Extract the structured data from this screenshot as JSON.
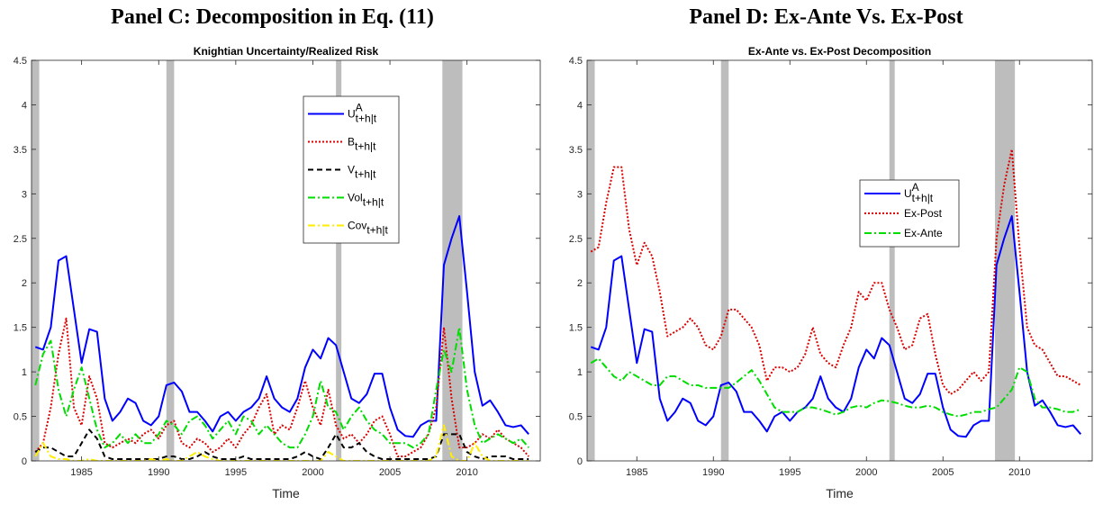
{
  "chart_data": [
    {
      "type": "line",
      "panel_title": "Panel C: Decomposition in Eq. (11)",
      "title": "Knightian Uncertainty/Realized Risk",
      "xlabel": "Time",
      "xlim": [
        1981.75,
        2014.75
      ],
      "xticks": [
        1985,
        1990,
        1995,
        2000,
        2005,
        2010
      ],
      "ylim": [
        0,
        4.5
      ],
      "yticks": [
        0,
        0.5,
        1,
        1.5,
        2,
        2.5,
        3,
        3.5,
        4,
        4.5
      ],
      "legend": "northeast",
      "shading": [
        [
          1981.75,
          1982.25
        ],
        [
          1990.5,
          1991.0
        ],
        [
          2001.5,
          2001.85
        ],
        [
          2008.4,
          2009.7
        ]
      ],
      "shading_color": "#bdbdbd",
      "x": [
        1982,
        1982.5,
        1983,
        1983.5,
        1984,
        1984.5,
        1985,
        1985.5,
        1986,
        1986.5,
        1987,
        1987.5,
        1988,
        1988.5,
        1989,
        1989.5,
        1990,
        1990.5,
        1991,
        1991.5,
        1992,
        1992.5,
        1993,
        1993.5,
        1994,
        1994.5,
        1995,
        1995.5,
        1996,
        1996.5,
        1997,
        1997.5,
        1998,
        1998.5,
        1999,
        1999.5,
        2000,
        2000.5,
        2001,
        2001.5,
        2002,
        2002.5,
        2003,
        2003.5,
        2004,
        2004.5,
        2005,
        2005.5,
        2006,
        2006.5,
        2007,
        2007.5,
        2008,
        2008.5,
        2009,
        2009.5,
        2010,
        2010.5,
        2011,
        2011.5,
        2012,
        2012.5,
        2013,
        2013.5,
        2014
      ],
      "series": [
        {
          "name": "U",
          "name_sup": "A",
          "name_sub": "t+h|t",
          "color": "#0000ff",
          "style": "solid",
          "values": [
            1.28,
            1.25,
            1.5,
            2.25,
            2.3,
            1.7,
            1.1,
            1.48,
            1.45,
            0.7,
            0.45,
            0.55,
            0.7,
            0.65,
            0.45,
            0.4,
            0.5,
            0.85,
            0.88,
            0.78,
            0.55,
            0.55,
            0.45,
            0.33,
            0.5,
            0.55,
            0.45,
            0.55,
            0.6,
            0.7,
            0.95,
            0.7,
            0.6,
            0.55,
            0.7,
            1.05,
            1.25,
            1.15,
            1.38,
            1.3,
            1.0,
            0.7,
            0.65,
            0.75,
            0.98,
            0.98,
            0.6,
            0.35,
            0.28,
            0.27,
            0.4,
            0.45,
            0.45,
            2.2,
            2.5,
            2.75,
            1.9,
            1.0,
            0.62,
            0.68,
            0.55,
            0.4,
            0.38,
            0.4,
            0.3
          ]
        },
        {
          "name": "B",
          "name_sub": "t+h|t",
          "color": "#dd0000",
          "style": "dotted",
          "values": [
            0.1,
            0.2,
            0.6,
            1.2,
            1.6,
            0.6,
            0.4,
            0.95,
            0.7,
            0.2,
            0.15,
            0.2,
            0.25,
            0.2,
            0.3,
            0.35,
            0.25,
            0.4,
            0.45,
            0.2,
            0.15,
            0.25,
            0.2,
            0.1,
            0.15,
            0.25,
            0.15,
            0.3,
            0.4,
            0.6,
            0.75,
            0.3,
            0.4,
            0.35,
            0.6,
            0.9,
            0.6,
            0.4,
            0.8,
            0.4,
            0.25,
            0.3,
            0.2,
            0.3,
            0.45,
            0.5,
            0.3,
            0.05,
            0.05,
            0.1,
            0.15,
            0.3,
            0.6,
            1.5,
            0.7,
            0.15,
            0.15,
            0.2,
            0.3,
            0.25,
            0.35,
            0.25,
            0.2,
            0.15,
            0.05
          ]
        },
        {
          "name": "V",
          "name_sub": "t+h|t",
          "color": "#000000",
          "style": "dashed",
          "values": [
            0.1,
            0.15,
            0.15,
            0.1,
            0.05,
            0.05,
            0.2,
            0.35,
            0.25,
            0.05,
            0.02,
            0.02,
            0.02,
            0.02,
            0.02,
            0.02,
            0.02,
            0.05,
            0.05,
            0.02,
            0.02,
            0.05,
            0.1,
            0.05,
            0.02,
            0.02,
            0.02,
            0.05,
            0.02,
            0.02,
            0.02,
            0.02,
            0.02,
            0.02,
            0.05,
            0.1,
            0.05,
            0.02,
            0.15,
            0.3,
            0.15,
            0.15,
            0.2,
            0.1,
            0.05,
            0.02,
            0.02,
            0.02,
            0.02,
            0.02,
            0.02,
            0.02,
            0.05,
            0.3,
            0.3,
            0.3,
            0.1,
            0.05,
            0.02,
            0.05,
            0.05,
            0.05,
            0.02,
            0.02,
            0.02
          ]
        },
        {
          "name": "Vol",
          "name_sub": "t+h|t",
          "color": "#00dd00",
          "style": "dashdot",
          "values": [
            0.85,
            1.2,
            1.35,
            0.8,
            0.5,
            0.8,
            1.05,
            0.7,
            0.35,
            0.15,
            0.2,
            0.3,
            0.2,
            0.3,
            0.2,
            0.2,
            0.3,
            0.45,
            0.4,
            0.3,
            0.45,
            0.5,
            0.4,
            0.25,
            0.35,
            0.45,
            0.3,
            0.5,
            0.45,
            0.3,
            0.4,
            0.3,
            0.2,
            0.15,
            0.15,
            0.3,
            0.5,
            0.9,
            0.6,
            0.55,
            0.35,
            0.5,
            0.6,
            0.45,
            0.35,
            0.3,
            0.2,
            0.2,
            0.2,
            0.15,
            0.2,
            0.3,
            0.8,
            1.25,
            1.0,
            1.5,
            0.8,
            0.4,
            0.2,
            0.25,
            0.3,
            0.25,
            0.2,
            0.25,
            0.15
          ]
        },
        {
          "name": "Cov",
          "name_sub": "t+h|t",
          "color": "#ffee00",
          "style": "dashdot",
          "values": [
            0.05,
            0.2,
            0.05,
            0.02,
            0.02,
            0,
            0,
            0.02,
            0,
            0,
            0,
            0,
            0,
            0,
            0,
            0.02,
            0,
            0.02,
            0,
            0,
            0.05,
            0.1,
            0.05,
            0.02,
            0,
            0,
            0,
            0,
            0,
            0,
            0,
            0,
            0,
            0,
            0,
            0,
            0,
            0,
            0.1,
            0.05,
            0,
            0,
            0,
            0,
            0,
            0,
            0,
            0,
            0,
            0,
            0,
            0,
            0.05,
            0.4,
            0.05,
            0,
            0,
            0.2,
            0.05,
            0,
            0,
            0,
            0,
            0,
            0
          ]
        }
      ]
    },
    {
      "type": "line",
      "panel_title": "Panel D: Ex-Ante Vs. Ex-Post",
      "title": "Ex-Ante vs. Ex-Post Decomposition",
      "xlabel": "Time",
      "xlim": [
        1981.75,
        2014.75
      ],
      "xticks": [
        1985,
        1990,
        1995,
        2000,
        2005,
        2010
      ],
      "ylim": [
        0,
        4.5
      ],
      "yticks": [
        0,
        0.5,
        1,
        1.5,
        2,
        2.5,
        3,
        3.5,
        4,
        4.5
      ],
      "legend": "east",
      "shading": [
        [
          1981.75,
          1982.25
        ],
        [
          1990.5,
          1991.0
        ],
        [
          2001.5,
          2001.85
        ],
        [
          2008.4,
          2009.7
        ]
      ],
      "shading_color": "#bdbdbd",
      "x": [
        1982,
        1982.5,
        1983,
        1983.5,
        1984,
        1984.5,
        1985,
        1985.5,
        1986,
        1986.5,
        1987,
        1987.5,
        1988,
        1988.5,
        1989,
        1989.5,
        1990,
        1990.5,
        1991,
        1991.5,
        1992,
        1992.5,
        1993,
        1993.5,
        1994,
        1994.5,
        1995,
        1995.5,
        1996,
        1996.5,
        1997,
        1997.5,
        1998,
        1998.5,
        1999,
        1999.5,
        2000,
        2000.5,
        2001,
        2001.5,
        2002,
        2002.5,
        2003,
        2003.5,
        2004,
        2004.5,
        2005,
        2005.5,
        2006,
        2006.5,
        2007,
        2007.5,
        2008,
        2008.5,
        2009,
        2009.5,
        2010,
        2010.5,
        2011,
        2011.5,
        2012,
        2012.5,
        2013,
        2013.5,
        2014
      ],
      "series": [
        {
          "name": "U",
          "name_sup": "A",
          "name_sub": "t+h|t",
          "color": "#0000ff",
          "style": "solid",
          "values": [
            1.28,
            1.25,
            1.5,
            2.25,
            2.3,
            1.7,
            1.1,
            1.48,
            1.45,
            0.7,
            0.45,
            0.55,
            0.7,
            0.65,
            0.45,
            0.4,
            0.5,
            0.85,
            0.88,
            0.78,
            0.55,
            0.55,
            0.45,
            0.33,
            0.5,
            0.55,
            0.45,
            0.55,
            0.6,
            0.7,
            0.95,
            0.7,
            0.6,
            0.55,
            0.7,
            1.05,
            1.25,
            1.15,
            1.38,
            1.3,
            1.0,
            0.7,
            0.65,
            0.75,
            0.98,
            0.98,
            0.6,
            0.35,
            0.28,
            0.27,
            0.4,
            0.45,
            0.45,
            2.2,
            2.5,
            2.75,
            1.9,
            1.0,
            0.62,
            0.68,
            0.55,
            0.4,
            0.38,
            0.4,
            0.3
          ]
        },
        {
          "name": "Ex-Post",
          "color": "#dd0000",
          "style": "dotted",
          "values": [
            2.35,
            2.4,
            2.9,
            3.3,
            3.3,
            2.6,
            2.2,
            2.45,
            2.3,
            1.9,
            1.4,
            1.45,
            1.5,
            1.6,
            1.5,
            1.3,
            1.25,
            1.4,
            1.7,
            1.7,
            1.6,
            1.5,
            1.3,
            0.9,
            1.05,
            1.05,
            1.0,
            1.05,
            1.2,
            1.5,
            1.2,
            1.1,
            1.05,
            1.3,
            1.5,
            1.9,
            1.8,
            2.0,
            2.0,
            1.7,
            1.5,
            1.25,
            1.3,
            1.6,
            1.65,
            1.2,
            0.85,
            0.75,
            0.8,
            0.9,
            1.0,
            0.9,
            1.0,
            2.5,
            3.1,
            3.5,
            2.4,
            1.5,
            1.3,
            1.25,
            1.1,
            0.95,
            0.95,
            0.9,
            0.85
          ]
        },
        {
          "name": "Ex-Ante",
          "color": "#00dd00",
          "style": "dashdot",
          "values": [
            1.1,
            1.15,
            1.05,
            0.95,
            0.9,
            1.0,
            0.95,
            0.9,
            0.85,
            0.85,
            0.95,
            0.95,
            0.9,
            0.85,
            0.85,
            0.82,
            0.82,
            0.82,
            0.82,
            0.88,
            0.95,
            1.02,
            0.9,
            0.75,
            0.6,
            0.55,
            0.55,
            0.55,
            0.6,
            0.6,
            0.58,
            0.55,
            0.52,
            0.55,
            0.6,
            0.62,
            0.6,
            0.65,
            0.68,
            0.67,
            0.65,
            0.62,
            0.6,
            0.6,
            0.62,
            0.6,
            0.55,
            0.52,
            0.5,
            0.52,
            0.55,
            0.55,
            0.58,
            0.6,
            0.7,
            0.8,
            1.05,
            1.0,
            0.7,
            0.6,
            0.6,
            0.58,
            0.55,
            0.55,
            0.58
          ]
        }
      ]
    }
  ]
}
